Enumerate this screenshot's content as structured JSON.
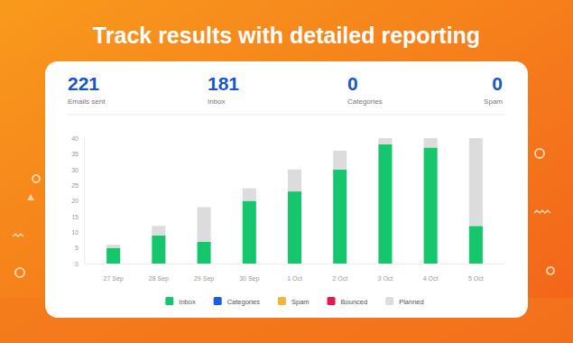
{
  "summary": [
    {
      "label": "Emails sent",
      "value": 221
    },
    {
      "label": "Inbox",
      "value": 181
    },
    {
      "label": "Categories",
      "value": 0
    },
    {
      "label": "Spam",
      "value": 0
    }
  ],
  "chart_data": {
    "type": "bar",
    "title": "Track results with detailed reporting",
    "stacked": true,
    "grid": false,
    "legend": "bottom",
    "categories": [
      "27 Sep",
      "28 Sep",
      "29 Sep",
      "30 Sep",
      "1 Oct",
      "2 Oct",
      "3 Oct",
      "4 Oct",
      "5 Oct"
    ],
    "series": [
      {
        "name": "Inbox",
        "color": "#16c66c",
        "values": [
          5,
          9,
          7,
          20,
          23,
          30,
          38,
          37,
          12
        ]
      },
      {
        "name": "Categories",
        "color": "#1a5ce6",
        "values": [
          0,
          0,
          0,
          0,
          0,
          0,
          0,
          0,
          0
        ]
      },
      {
        "name": "Spam",
        "color": "#f2b53c",
        "values": [
          0,
          0,
          0,
          0,
          0,
          0,
          0,
          0,
          0
        ]
      },
      {
        "name": "Bounced",
        "color": "#e8174e",
        "values": [
          0,
          0,
          0,
          0,
          0,
          0,
          0,
          0,
          0
        ]
      },
      {
        "name": "Planned",
        "color": "#dcdcdc",
        "values": [
          1,
          3,
          11,
          4,
          7,
          6,
          2,
          3,
          28
        ]
      }
    ],
    "ylim": [
      0,
      40
    ],
    "yticks": [
      0,
      5,
      10,
      15,
      20,
      25,
      30,
      35,
      40
    ]
  }
}
